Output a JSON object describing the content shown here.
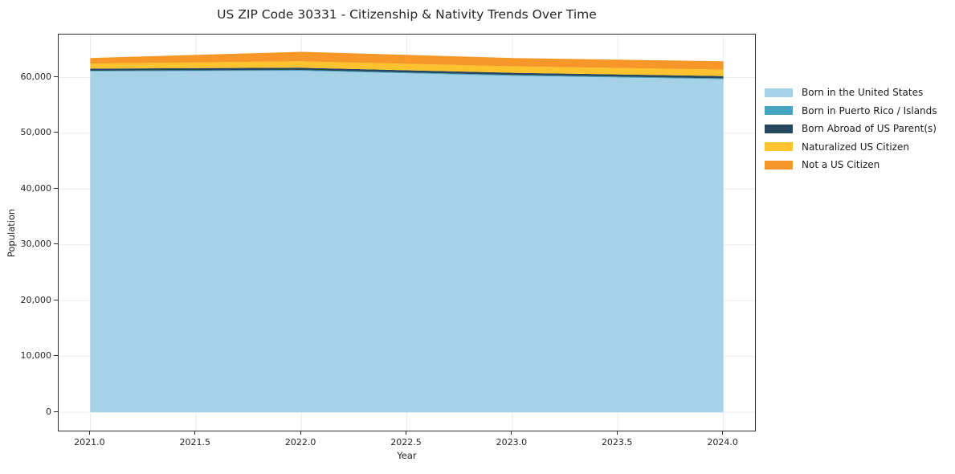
{
  "chart_data": {
    "type": "area",
    "stacked": true,
    "title": "US ZIP Code 30331 - Citizenship & Nativity Trends Over Time",
    "xlabel": "Year",
    "ylabel": "Population",
    "x": [
      2021,
      2022,
      2023,
      2024
    ],
    "series": [
      {
        "name": "Born in the United States",
        "color": "#a6d2e8",
        "values": [
          61100,
          61200,
          60300,
          59700
        ]
      },
      {
        "name": "Born in Puerto Rico / Islands",
        "color": "#45a5c2",
        "values": [
          100,
          150,
          150,
          150
        ]
      },
      {
        "name": "Born Abroad of US Parent(s)",
        "color": "#26475d",
        "values": [
          400,
          400,
          400,
          400
        ]
      },
      {
        "name": "Naturalized US Citizen",
        "color": "#fcc32f",
        "values": [
          900,
          1150,
          1150,
          1150
        ]
      },
      {
        "name": "Not a US Citizen",
        "color": "#f79728",
        "values": [
          1000,
          1700,
          1500,
          1500
        ]
      }
    ],
    "xticks": [
      2021.0,
      2021.5,
      2022.0,
      2022.5,
      2023.0,
      2023.5,
      2024.0
    ],
    "xtick_labels": [
      "2021.0",
      "2021.5",
      "2022.0",
      "2022.5",
      "2023.0",
      "2023.5",
      "2024.0"
    ],
    "yticks": [
      0,
      10000,
      20000,
      30000,
      40000,
      50000,
      60000
    ],
    "ytick_labels": [
      "0",
      "10,000",
      "20,000",
      "30,000",
      "40,000",
      "50,000",
      "60,000"
    ],
    "xlim": [
      2020.85,
      2024.15
    ],
    "ylim": [
      -3300,
      67700
    ],
    "grid": true,
    "grid_color": "#ebebeb",
    "text_color": "#262626",
    "legend_position": "right"
  }
}
